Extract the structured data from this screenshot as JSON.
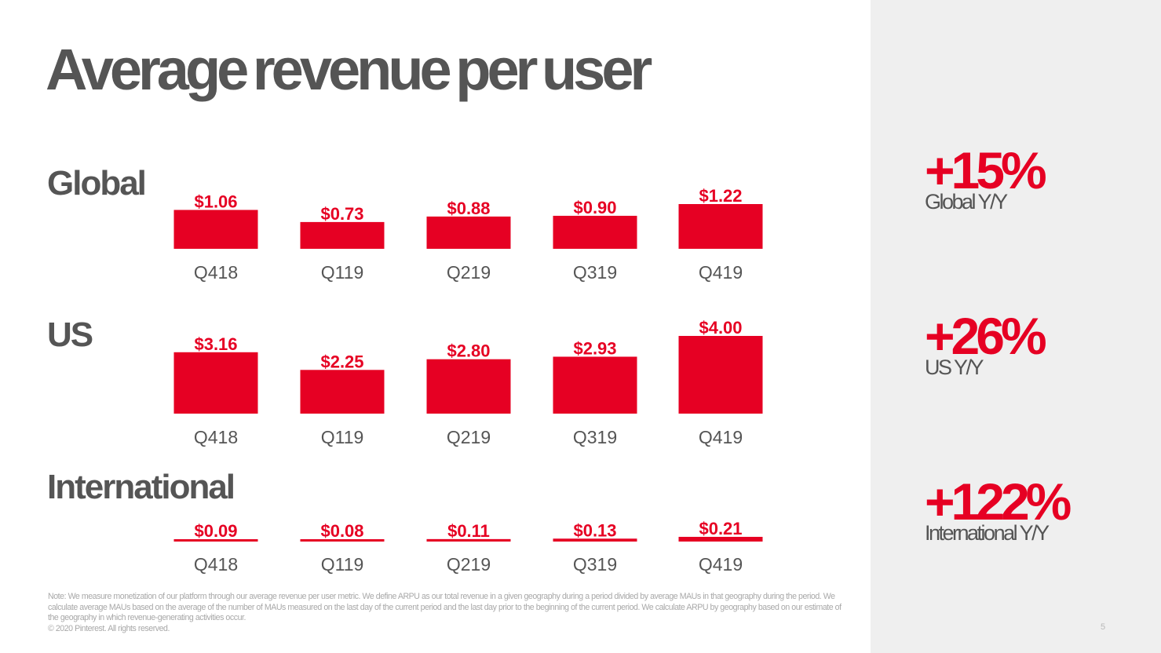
{
  "page": {
    "title": "Average revenue per user",
    "page_number": "5"
  },
  "colors": {
    "accent": "#e60023",
    "text_dark": "#555555",
    "panel_bg": "#efefef",
    "footnote": "#a8a8a8"
  },
  "sections": [
    {
      "label": "Global"
    },
    {
      "label": "US"
    },
    {
      "label": "International"
    }
  ],
  "kpis": [
    {
      "value": "+15%",
      "label": "Global Y/Y"
    },
    {
      "value": "+26%",
      "label": "US Y/Y"
    },
    {
      "value": "+122%",
      "label": "International Y/Y"
    }
  ],
  "footnote": {
    "note": "Note: We measure monetization of our platform through our average revenue per user metric. We define ARPU as our total revenue in a given geography during a period divided by average MAUs in that geography during the period. We calculate average MAUs based on the average of the number of MAUs measured on the last day of the current period and the last day prior to the beginning of the current period. We calculate ARPU by geography based on our estimate of the geography in which revenue-generating activities occur.",
    "copyright": "© 2020 Pinterest. All rights reserved."
  },
  "chart_data": [
    {
      "type": "bar",
      "title": "Global",
      "categories": [
        "Q418",
        "Q119",
        "Q219",
        "Q319",
        "Q419"
      ],
      "values": [
        1.06,
        0.73,
        0.88,
        0.9,
        1.22
      ],
      "value_labels": [
        "$1.06",
        "$0.73",
        "$0.88",
        "$0.90",
        "$1.22"
      ],
      "xlabel": "",
      "ylabel": "",
      "ylim": [
        0,
        1.22
      ],
      "grid": false,
      "legend": "none",
      "yoy_change": "+15%"
    },
    {
      "type": "bar",
      "title": "US",
      "categories": [
        "Q418",
        "Q119",
        "Q219",
        "Q319",
        "Q419"
      ],
      "values": [
        3.16,
        2.25,
        2.8,
        2.93,
        4.0
      ],
      "value_labels": [
        "$3.16",
        "$2.25",
        "$2.80",
        "$2.93",
        "$4.00"
      ],
      "xlabel": "",
      "ylabel": "",
      "ylim": [
        0,
        4.0
      ],
      "grid": false,
      "legend": "none",
      "yoy_change": "+26%"
    },
    {
      "type": "bar",
      "title": "International",
      "categories": [
        "Q418",
        "Q119",
        "Q219",
        "Q319",
        "Q419"
      ],
      "values": [
        0.09,
        0.08,
        0.11,
        0.13,
        0.21
      ],
      "value_labels": [
        "$0.09",
        "$0.08",
        "$0.11",
        "$0.13",
        "$0.21"
      ],
      "xlabel": "",
      "ylabel": "",
      "ylim": [
        0,
        0.21
      ],
      "grid": false,
      "legend": "none",
      "yoy_change": "+122%"
    }
  ]
}
